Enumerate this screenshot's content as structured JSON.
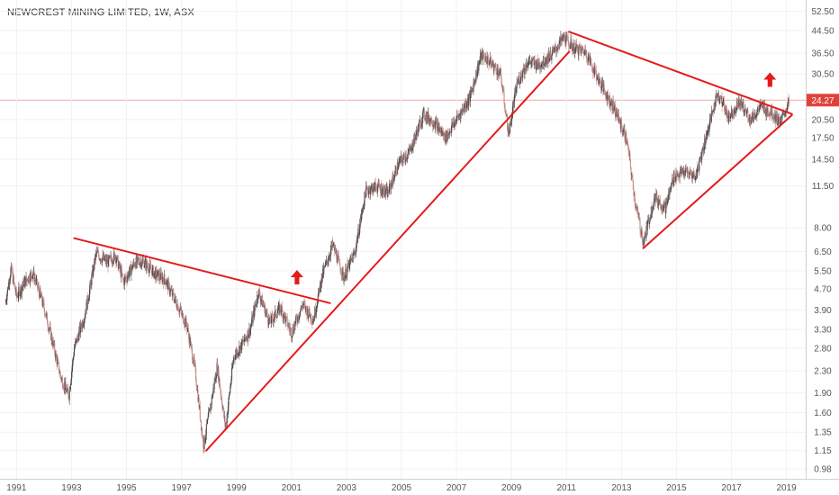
{
  "chart_data": {
    "type": "candlestick",
    "title": "NEWCREST MINING LIMITED, 1W, ASX",
    "scale": "log",
    "ylim": [
      0.9,
      58
    ],
    "xlim": [
      1990.4,
      2019.7
    ],
    "y_ticks": [
      "52.50",
      "44.50",
      "36.50",
      "30.50",
      "24.27",
      "20.50",
      "17.50",
      "14.50",
      "11.50",
      "8.00",
      "6.50",
      "5.50",
      "4.70",
      "3.90",
      "3.30",
      "2.80",
      "2.30",
      "1.90",
      "1.60",
      "1.35",
      "1.15",
      "0.98"
    ],
    "x_ticks": [
      "1991",
      "1993",
      "1995",
      "1997",
      "1999",
      "2001",
      "2003",
      "2005",
      "2007",
      "2009",
      "2011",
      "2013",
      "2015",
      "2017",
      "2019"
    ],
    "last_price": 24.27,
    "colors": {
      "up": "#4a4a4a",
      "down": "#c98a8a",
      "trendline": "#e31b1b",
      "arrow": "#e31b1b",
      "price_tag": "#e0423a"
    },
    "price_path": [
      [
        1990.6,
        4.2
      ],
      [
        1990.8,
        5.6
      ],
      [
        1991.0,
        4.4
      ],
      [
        1991.3,
        5.0
      ],
      [
        1991.6,
        5.4
      ],
      [
        1992.0,
        4.0
      ],
      [
        1992.3,
        3.0
      ],
      [
        1992.6,
        2.2
      ],
      [
        1992.9,
        1.85
      ],
      [
        1993.1,
        2.8
      ],
      [
        1993.5,
        3.8
      ],
      [
        1993.9,
        6.4
      ],
      [
        1994.3,
        5.9
      ],
      [
        1994.6,
        6.3
      ],
      [
        1994.9,
        5.0
      ],
      [
        1995.3,
        5.9
      ],
      [
        1995.6,
        6.0
      ],
      [
        1996.0,
        5.4
      ],
      [
        1996.4,
        5.1
      ],
      [
        1996.8,
        4.2
      ],
      [
        1997.2,
        3.4
      ],
      [
        1997.5,
        2.3
      ],
      [
        1997.8,
        1.2
      ],
      [
        1998.1,
        1.8
      ],
      [
        1998.3,
        2.4
      ],
      [
        1998.6,
        1.4
      ],
      [
        1998.9,
        2.6
      ],
      [
        1999.2,
        2.9
      ],
      [
        1999.5,
        3.3
      ],
      [
        1999.8,
        4.6
      ],
      [
        2000.2,
        3.5
      ],
      [
        2000.6,
        4.0
      ],
      [
        2001.0,
        3.2
      ],
      [
        2001.4,
        4.1
      ],
      [
        2001.8,
        3.6
      ],
      [
        2002.1,
        5.2
      ],
      [
        2002.5,
        6.9
      ],
      [
        2002.9,
        5.2
      ],
      [
        2003.3,
        6.4
      ],
      [
        2003.7,
        11.0
      ],
      [
        2004.1,
        11.5
      ],
      [
        2004.5,
        10.8
      ],
      [
        2004.9,
        14.0
      ],
      [
        2005.3,
        15.5
      ],
      [
        2005.8,
        21.5
      ],
      [
        2006.2,
        20.0
      ],
      [
        2006.6,
        17.5
      ],
      [
        2007.0,
        20.5
      ],
      [
        2007.5,
        25.0
      ],
      [
        2007.9,
        36.0
      ],
      [
        2008.2,
        34.0
      ],
      [
        2008.6,
        30.5
      ],
      [
        2008.9,
        18.0
      ],
      [
        2009.2,
        28.0
      ],
      [
        2009.6,
        34.0
      ],
      [
        2010.0,
        33.0
      ],
      [
        2010.5,
        36.5
      ],
      [
        2010.9,
        42.0
      ],
      [
        2011.3,
        38.0
      ],
      [
        2011.7,
        37.0
      ],
      [
        2012.1,
        30.0
      ],
      [
        2012.5,
        25.0
      ],
      [
        2012.8,
        22.0
      ],
      [
        2013.2,
        17.0
      ],
      [
        2013.5,
        10.0
      ],
      [
        2013.8,
        7.0
      ],
      [
        2014.2,
        10.5
      ],
      [
        2014.6,
        9.5
      ],
      [
        2014.9,
        12.5
      ],
      [
        2015.3,
        13.0
      ],
      [
        2015.7,
        12.5
      ],
      [
        2016.1,
        18.0
      ],
      [
        2016.5,
        26.0
      ],
      [
        2016.9,
        21.0
      ],
      [
        2017.3,
        24.0
      ],
      [
        2017.7,
        20.5
      ],
      [
        2018.1,
        23.0
      ],
      [
        2018.5,
        21.5
      ],
      [
        2018.8,
        20.0
      ],
      [
        2019.1,
        24.27
      ]
    ],
    "annotations": {
      "trendlines": [
        {
          "x1": 1993.1,
          "y1": 7.3,
          "x2": 2002.4,
          "y2": 4.15
        },
        {
          "x1": 1997.9,
          "y1": 1.15,
          "x2": 2011.1,
          "y2": 37.0
        },
        {
          "x1": 2011.1,
          "y1": 44.0,
          "x2": 2019.2,
          "y2": 21.5
        },
        {
          "x1": 2013.8,
          "y1": 6.7,
          "x2": 2019.2,
          "y2": 21.3
        }
      ],
      "arrows": [
        {
          "x": 2001.2,
          "y": 5.2
        },
        {
          "x": 2018.4,
          "y": 29.0
        }
      ]
    }
  }
}
